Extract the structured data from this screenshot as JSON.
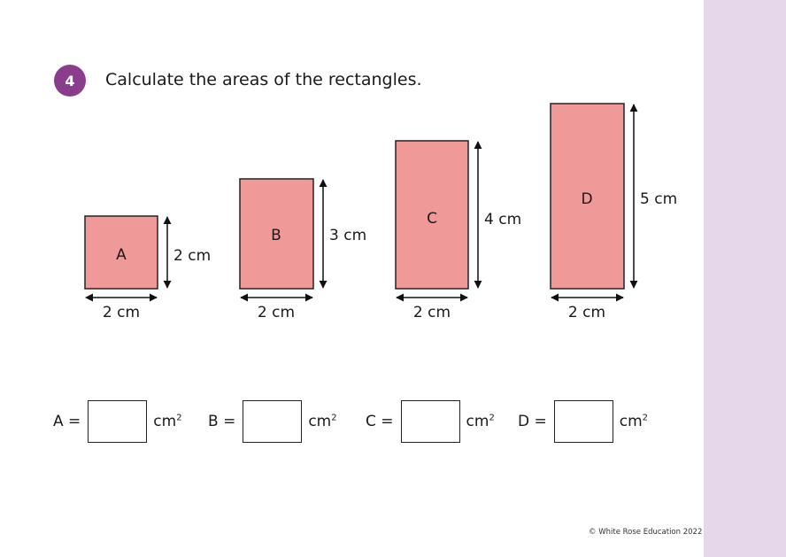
{
  "question": {
    "number": "4",
    "text": "Calculate the areas of the rectangles."
  },
  "colors": {
    "rect_fill": "#f09999",
    "badge": "#8a3d8c",
    "sidebar": "#e7d7eb"
  },
  "rectangles": [
    {
      "label": "A",
      "width": "2 cm",
      "height": "2 cm"
    },
    {
      "label": "B",
      "width": "2 cm",
      "height": "3 cm"
    },
    {
      "label": "C",
      "width": "2 cm",
      "height": "4 cm"
    },
    {
      "label": "D",
      "width": "2 cm",
      "height": "5 cm"
    }
  ],
  "answers": [
    {
      "label": "A =",
      "value": "",
      "unit": "cm",
      "unit_sup": "2"
    },
    {
      "label": "B =",
      "value": "",
      "unit": "cm",
      "unit_sup": "2"
    },
    {
      "label": "C =",
      "value": "",
      "unit": "cm",
      "unit_sup": "2"
    },
    {
      "label": "D =",
      "value": "",
      "unit": "cm",
      "unit_sup": "2"
    }
  ],
  "footer": {
    "copyright": "© White Rose Education 2022"
  }
}
